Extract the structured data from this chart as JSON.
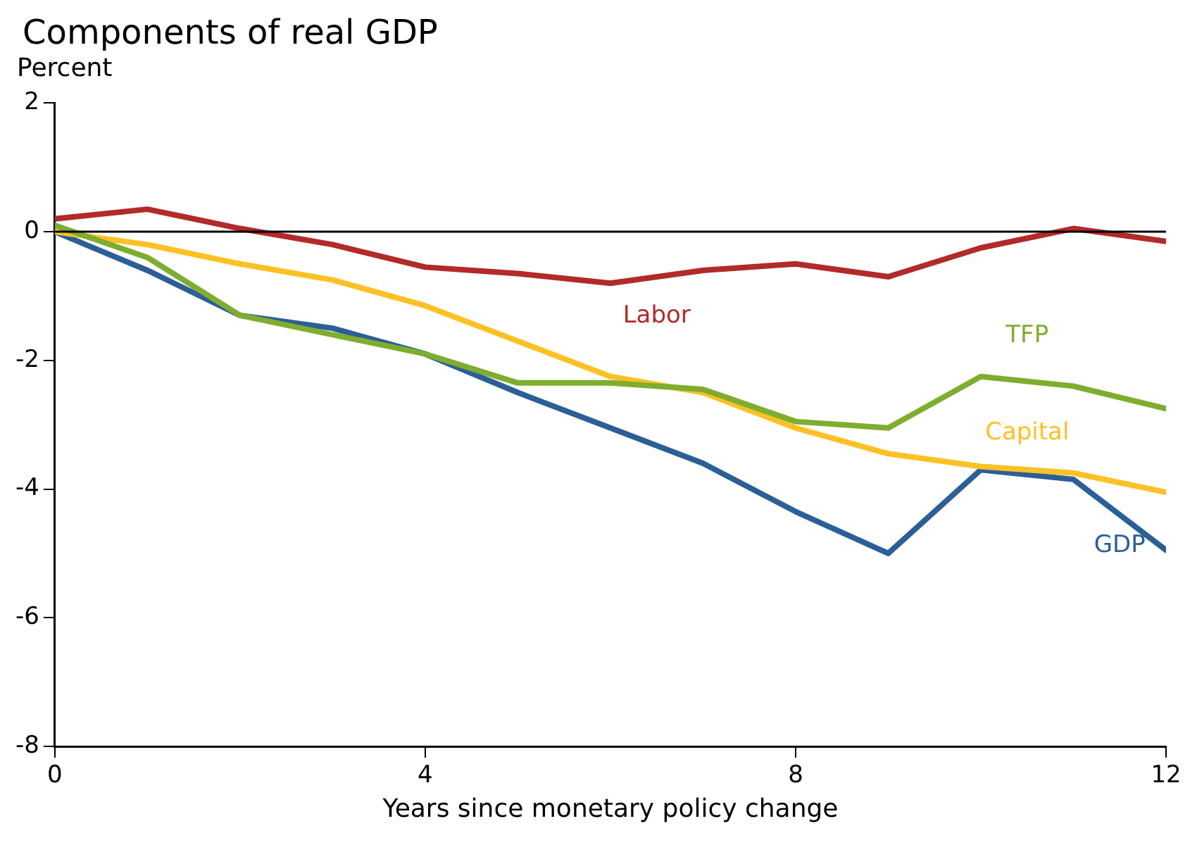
{
  "chart_data": {
    "type": "line",
    "title": "Components of real GDP",
    "ylabel": "Percent",
    "xlabel": "Years since monetary policy change",
    "x": [
      0,
      1,
      2,
      3,
      4,
      5,
      6,
      7,
      8,
      9,
      10,
      11,
      12
    ],
    "series": [
      {
        "name": "Labor",
        "color": "#b22a2a",
        "values": [
          0.2,
          0.35,
          0.05,
          -0.2,
          -0.55,
          -0.65,
          -0.8,
          -0.6,
          -0.5,
          -0.7,
          -0.25,
          0.05,
          -0.15
        ]
      },
      {
        "name": "TFP",
        "color": "#7ead2f",
        "values": [
          0.1,
          -0.4,
          -1.3,
          -1.6,
          -1.9,
          -2.35,
          -2.35,
          -2.45,
          -2.95,
          -3.05,
          -2.25,
          -2.4,
          -2.75
        ]
      },
      {
        "name": "Capital",
        "color": "#fbc125",
        "values": [
          0,
          -0.2,
          -0.5,
          -0.75,
          -1.15,
          -1.7,
          -2.25,
          -2.5,
          -3.05,
          -3.45,
          -3.65,
          -3.75,
          -4.05
        ]
      },
      {
        "name": "GDP",
        "color": "#2b5f96",
        "values": [
          0,
          -0.6,
          -1.3,
          -1.5,
          -1.9,
          -2.5,
          -3.05,
          -3.6,
          -4.35,
          -5.0,
          -3.7,
          -3.85,
          -4.95
        ]
      }
    ],
    "xlim": [
      0,
      12
    ],
    "xticks": [
      0,
      4,
      8,
      12
    ],
    "ylim": [
      -8,
      2
    ],
    "yticks": [
      -8,
      -6,
      -4,
      -2,
      0,
      2
    ],
    "ref_lines": [
      {
        "axis": "y",
        "value": 0,
        "color": "#000000"
      }
    ],
    "grid": false,
    "legend": false,
    "marker": "none",
    "line_style": "solid"
  }
}
